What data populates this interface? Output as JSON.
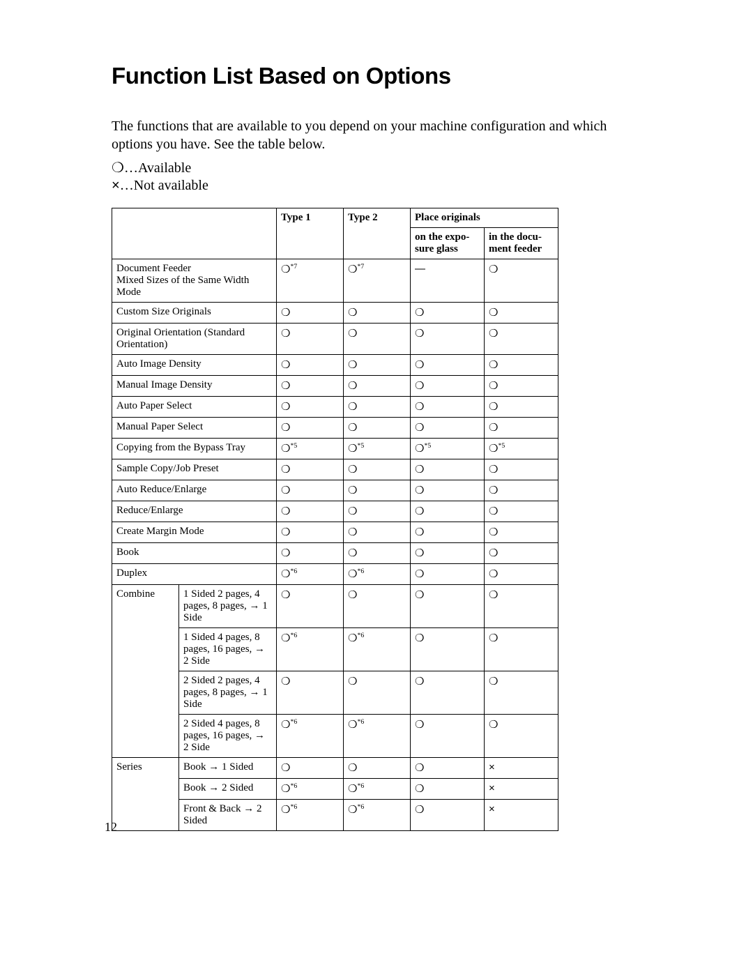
{
  "title": "Function List Based on Options",
  "intro": "The functions that are available to you depend on your machine configuration and which options you have. See the table below.",
  "legend": {
    "available_symbol": "❍",
    "available_text": "…Available",
    "not_available_symbol": "×",
    "not_available_text": "…Not available"
  },
  "headers": {
    "type1": "Type 1",
    "type2": "Type 2",
    "place_originals": "Place originals",
    "on_glass": "on the expo-\nsure glass",
    "in_feeder": "in the docu-\nment feeder"
  },
  "symbols": {
    "circle": "❍",
    "cross": "×",
    "dash": "—"
  },
  "rows": [
    {
      "label": "Document Feeder\nMixed Sizes of the Same Width Mode",
      "span": 2,
      "cells": [
        {
          "v": "circle",
          "sup": "*7"
        },
        {
          "v": "circle",
          "sup": "*7"
        },
        {
          "v": "dash"
        },
        {
          "v": "circle"
        }
      ]
    },
    {
      "label": "Custom Size Originals",
      "span": 2,
      "cells": [
        {
          "v": "circle"
        },
        {
          "v": "circle"
        },
        {
          "v": "circle"
        },
        {
          "v": "circle"
        }
      ]
    },
    {
      "label": "Original Orientation (Standard Orientation)",
      "span": 2,
      "cells": [
        {
          "v": "circle"
        },
        {
          "v": "circle"
        },
        {
          "v": "circle"
        },
        {
          "v": "circle"
        }
      ]
    },
    {
      "label": "Auto Image Density",
      "span": 2,
      "cells": [
        {
          "v": "circle"
        },
        {
          "v": "circle"
        },
        {
          "v": "circle"
        },
        {
          "v": "circle"
        }
      ]
    },
    {
      "label": "Manual Image Density",
      "span": 2,
      "cells": [
        {
          "v": "circle"
        },
        {
          "v": "circle"
        },
        {
          "v": "circle"
        },
        {
          "v": "circle"
        }
      ]
    },
    {
      "label": "Auto Paper Select",
      "span": 2,
      "cells": [
        {
          "v": "circle"
        },
        {
          "v": "circle"
        },
        {
          "v": "circle"
        },
        {
          "v": "circle"
        }
      ]
    },
    {
      "label": "Manual Paper Select",
      "span": 2,
      "cells": [
        {
          "v": "circle"
        },
        {
          "v": "circle"
        },
        {
          "v": "circle"
        },
        {
          "v": "circle"
        }
      ]
    },
    {
      "label": "Copying from the Bypass Tray",
      "span": 2,
      "cells": [
        {
          "v": "circle",
          "sup": "*5"
        },
        {
          "v": "circle",
          "sup": "*5"
        },
        {
          "v": "circle",
          "sup": "*5"
        },
        {
          "v": "circle",
          "sup": "*5"
        }
      ]
    },
    {
      "label": "Sample Copy/Job Preset",
      "span": 2,
      "cells": [
        {
          "v": "circle"
        },
        {
          "v": "circle"
        },
        {
          "v": "circle"
        },
        {
          "v": "circle"
        }
      ]
    },
    {
      "label": "Auto Reduce/Enlarge",
      "span": 2,
      "cells": [
        {
          "v": "circle"
        },
        {
          "v": "circle"
        },
        {
          "v": "circle"
        },
        {
          "v": "circle"
        }
      ]
    },
    {
      "label": "Reduce/Enlarge",
      "span": 2,
      "cells": [
        {
          "v": "circle"
        },
        {
          "v": "circle"
        },
        {
          "v": "circle"
        },
        {
          "v": "circle"
        }
      ]
    },
    {
      "label": "Create Margin Mode",
      "span": 2,
      "cells": [
        {
          "v": "circle"
        },
        {
          "v": "circle"
        },
        {
          "v": "circle"
        },
        {
          "v": "circle"
        }
      ]
    },
    {
      "label": "Book",
      "span": 2,
      "cells": [
        {
          "v": "circle"
        },
        {
          "v": "circle"
        },
        {
          "v": "circle"
        },
        {
          "v": "circle"
        }
      ]
    },
    {
      "label": "Duplex",
      "span": 2,
      "cells": [
        {
          "v": "circle",
          "sup": "*6"
        },
        {
          "v": "circle",
          "sup": "*6"
        },
        {
          "v": "circle"
        },
        {
          "v": "circle"
        }
      ]
    },
    {
      "group": "Combine",
      "group_rows": 4,
      "sub": "1 Sided 2 pages, 4 pages, 8 pages, → 1 Side",
      "cells": [
        {
          "v": "circle"
        },
        {
          "v": "circle"
        },
        {
          "v": "circle"
        },
        {
          "v": "circle"
        }
      ]
    },
    {
      "sub": "1 Sided 4 pages, 8 pages, 16 pages, → 2 Side",
      "cells": [
        {
          "v": "circle",
          "sup": "*6"
        },
        {
          "v": "circle",
          "sup": "*6"
        },
        {
          "v": "circle"
        },
        {
          "v": "circle"
        }
      ]
    },
    {
      "sub": "2 Sided 2 pages, 4 pages, 8 pages, → 1 Side",
      "cells": [
        {
          "v": "circle"
        },
        {
          "v": "circle"
        },
        {
          "v": "circle"
        },
        {
          "v": "circle"
        }
      ]
    },
    {
      "sub": "2 Sided 4 pages, 8 pages, 16 pages, → 2 Side",
      "cells": [
        {
          "v": "circle",
          "sup": "*6"
        },
        {
          "v": "circle",
          "sup": "*6"
        },
        {
          "v": "circle"
        },
        {
          "v": "circle"
        }
      ]
    },
    {
      "group": "Series",
      "group_rows": 3,
      "sub": "Book → 1 Sided",
      "cells": [
        {
          "v": "circle"
        },
        {
          "v": "circle"
        },
        {
          "v": "circle"
        },
        {
          "v": "cross"
        }
      ]
    },
    {
      "sub": "Book → 2 Sided",
      "cells": [
        {
          "v": "circle",
          "sup": "*6"
        },
        {
          "v": "circle",
          "sup": "*6"
        },
        {
          "v": "circle"
        },
        {
          "v": "cross"
        }
      ]
    },
    {
      "sub": "Front & Back → 2 Sided",
      "cells": [
        {
          "v": "circle",
          "sup": "*6"
        },
        {
          "v": "circle",
          "sup": "*6"
        },
        {
          "v": "circle"
        },
        {
          "v": "cross"
        }
      ]
    }
  ],
  "page_number": "12"
}
